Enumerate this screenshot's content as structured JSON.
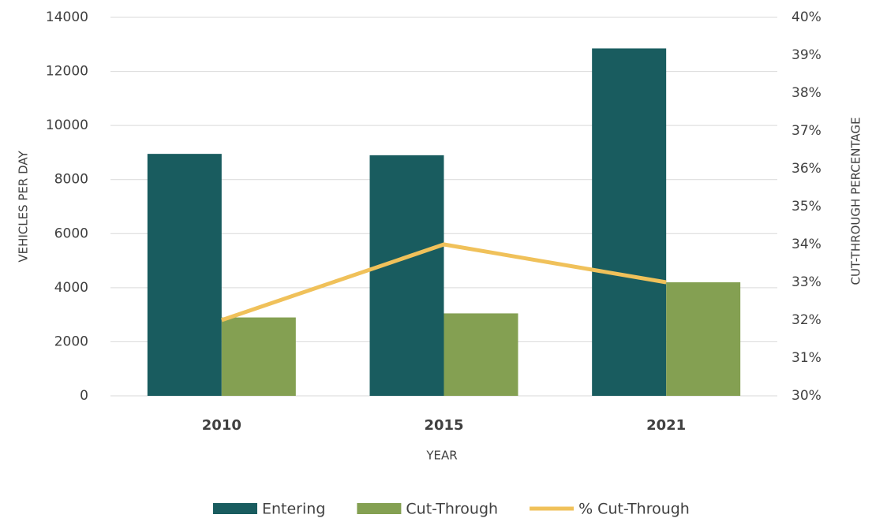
{
  "chart_data": {
    "type": "bar",
    "x_label": "YEAR",
    "y_label": "VEHICLES PER DAY",
    "y2_label": "CUT-THROUGH PERCENTAGE",
    "categories": [
      "2010",
      "2015",
      "2021"
    ],
    "series": [
      {
        "name": "Entering",
        "color": "#195c5f",
        "type": "bar",
        "values": [
          8950,
          8900,
          12850
        ]
      },
      {
        "name": "Cut-Through",
        "color": "#84a052",
        "type": "bar",
        "values": [
          2900,
          3050,
          4200
        ]
      },
      {
        "name": "% Cut-Through",
        "color": "#f0c15a",
        "type": "line",
        "axis": "y2",
        "values": [
          32,
          34,
          33
        ]
      }
    ],
    "ylim": [
      0,
      14000
    ],
    "yticks": [
      0,
      2000,
      4000,
      6000,
      8000,
      10000,
      12000,
      14000
    ],
    "y2lim": [
      30,
      40
    ],
    "y2ticks": [
      {
        "value": 30,
        "label": "30%"
      },
      {
        "value": 31,
        "label": "31%"
      },
      {
        "value": 32,
        "label": "32%"
      },
      {
        "value": 33,
        "label": "33%"
      },
      {
        "value": 34,
        "label": "34%"
      },
      {
        "value": 35,
        "label": "35%"
      },
      {
        "value": 36,
        "label": "36%"
      },
      {
        "value": 37,
        "label": "37%"
      },
      {
        "value": 38,
        "label": "38%"
      },
      {
        "value": 39,
        "label": "39%"
      },
      {
        "value": 40,
        "label": "40%"
      }
    ],
    "grid": true,
    "legend": "bottom"
  }
}
